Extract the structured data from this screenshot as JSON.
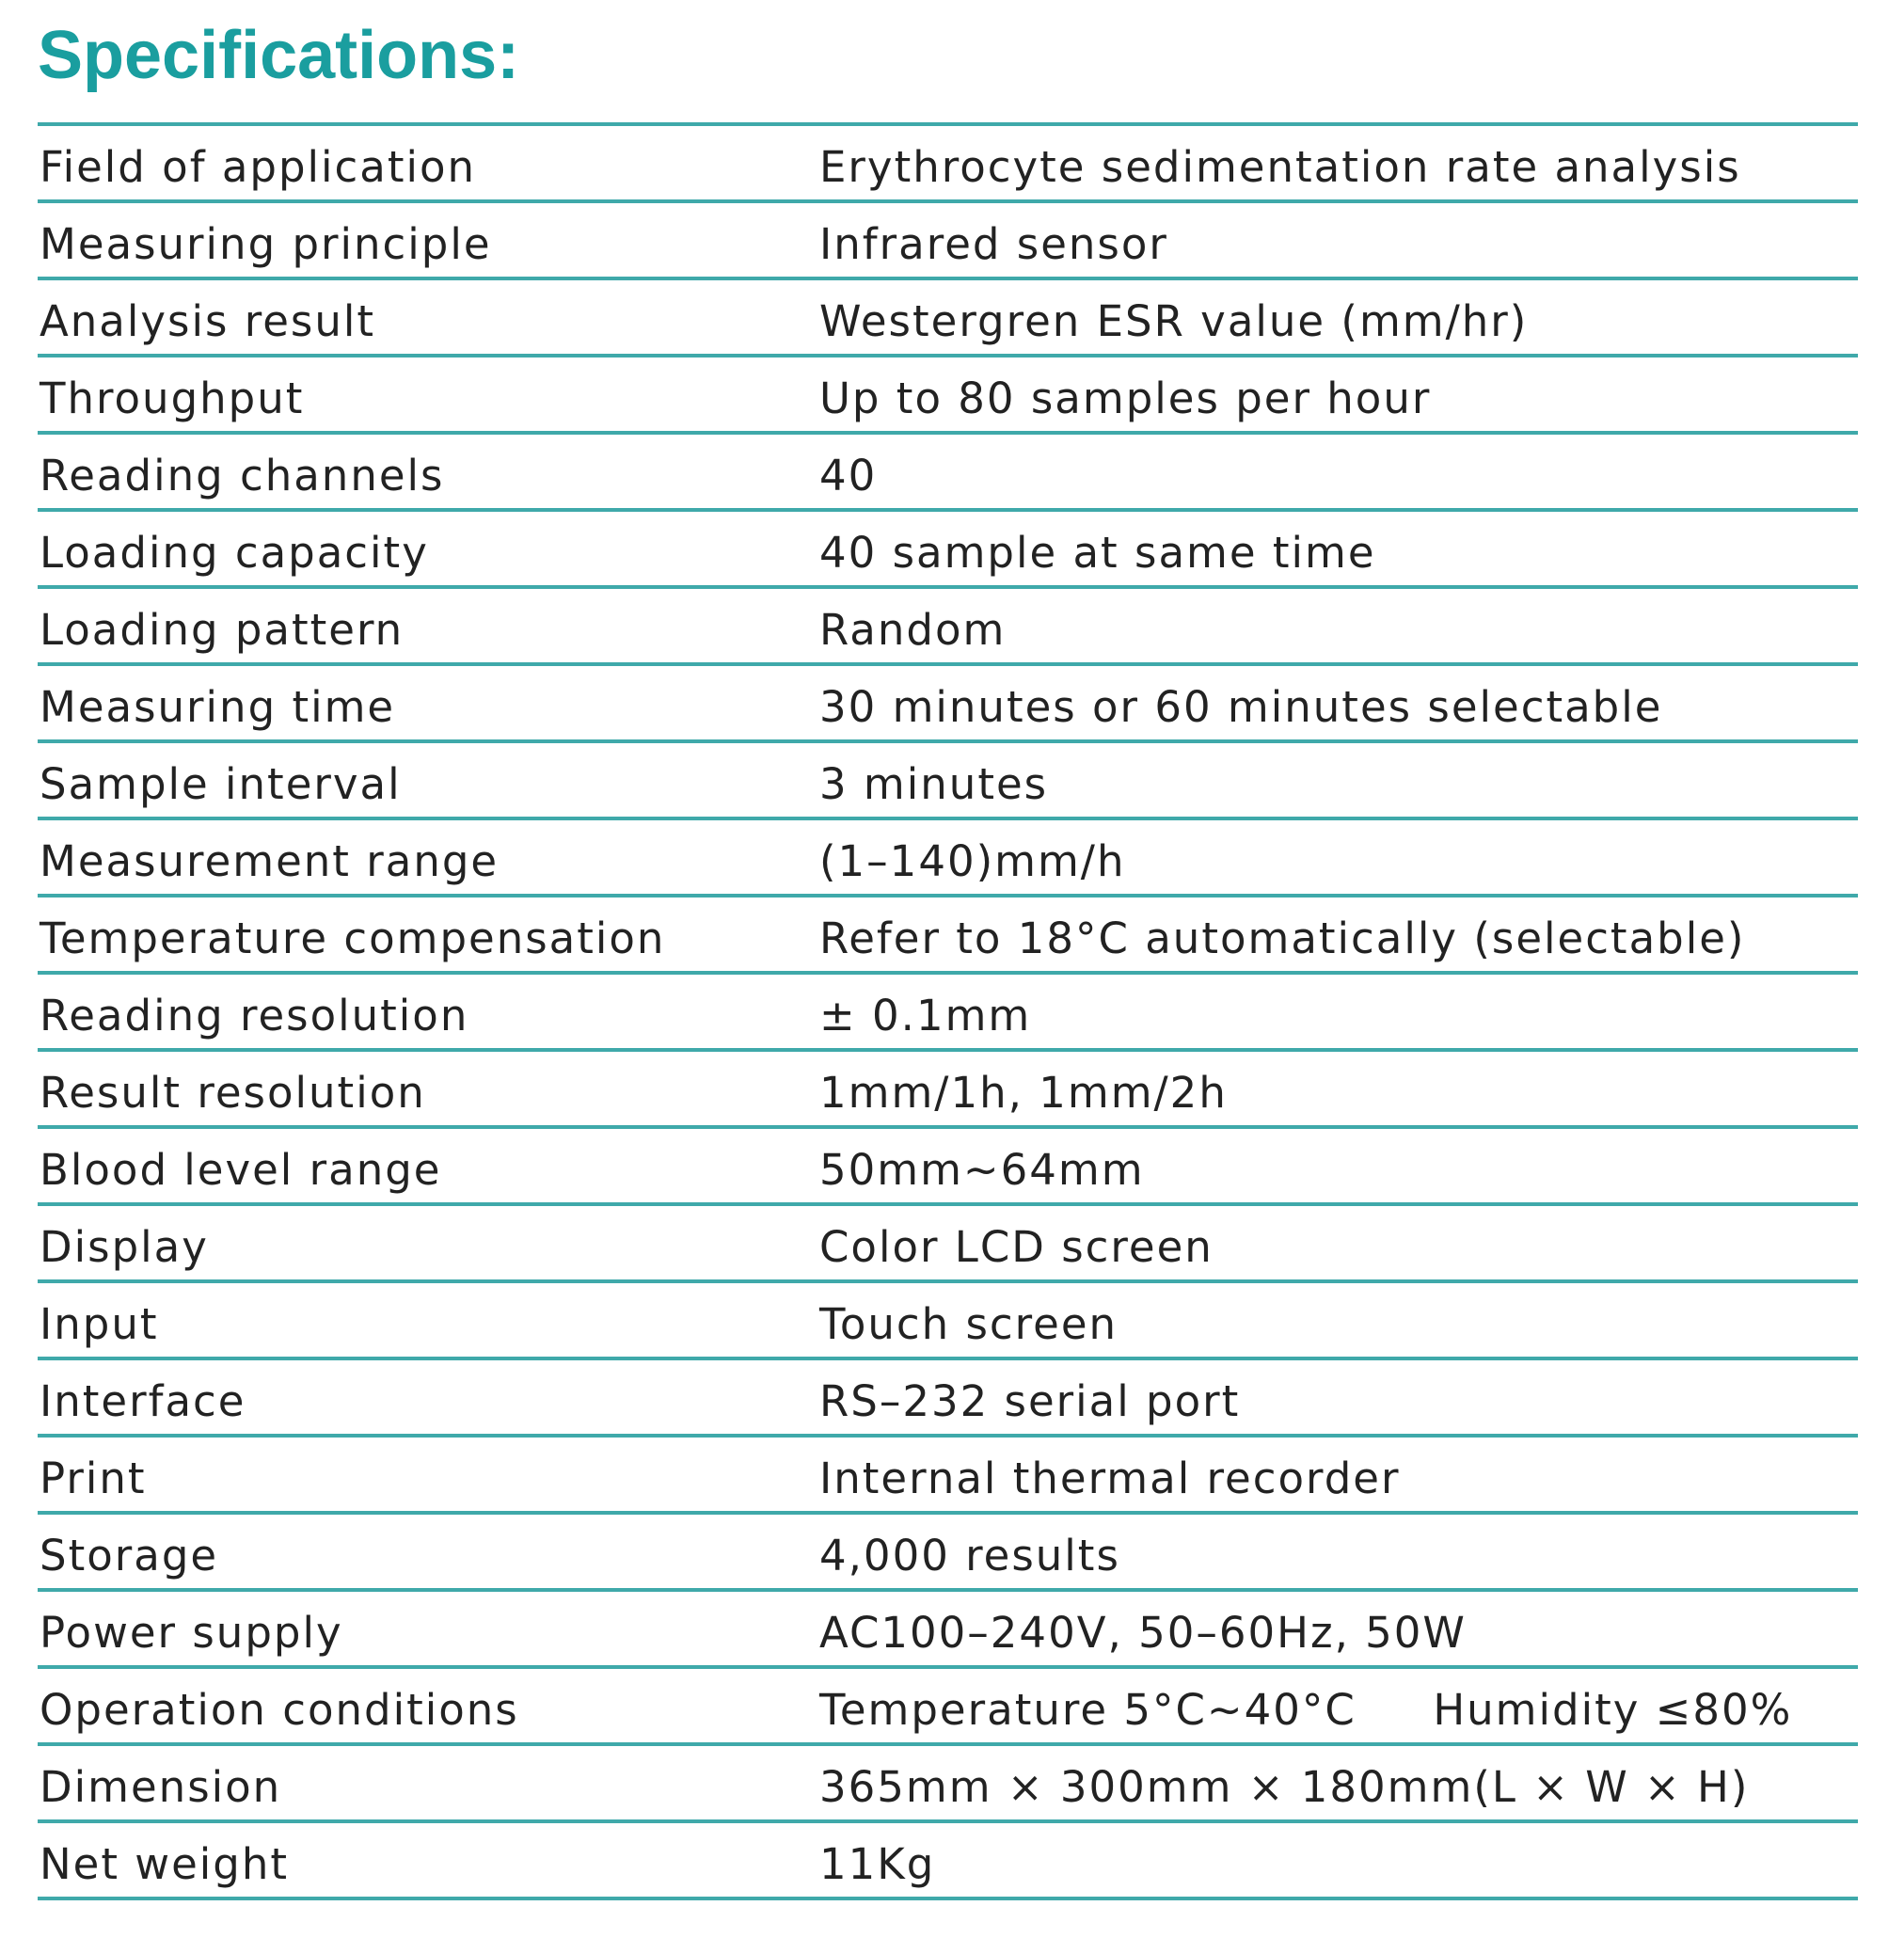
{
  "header": {
    "title": "Specifications:"
  },
  "table": {
    "rows": [
      [
        "Field of application",
        "Erythrocyte sedimentation rate analysis"
      ],
      [
        "Measuring principle",
        "Infrared sensor"
      ],
      [
        "Analysis result",
        "Westergren ESR value (mm/hr)"
      ],
      [
        "Throughput",
        "Up to 80 samples per hour"
      ],
      [
        "Reading channels",
        "40"
      ],
      [
        "Loading capacity",
        "40 sample at same time"
      ],
      [
        "Loading pattern",
        "Random"
      ],
      [
        "Measuring time",
        "30 minutes or 60 minutes selectable"
      ],
      [
        "Sample interval",
        "3 minutes"
      ],
      [
        "Measurement range",
        "(1–140)mm/h"
      ],
      [
        "Temperature compensation",
        "Refer to 18°C automatically (selectable)"
      ],
      [
        "Reading resolution",
        "± 0.1mm"
      ],
      [
        "Result resolution",
        "1mm/1h, 1mm/2h"
      ],
      [
        "Blood level range",
        "50mm~64mm"
      ],
      [
        "Display",
        "Color LCD screen"
      ],
      [
        "Input",
        "Touch screen"
      ],
      [
        "Interface",
        "RS–232 serial port"
      ],
      [
        "Print",
        "Internal thermal recorder"
      ],
      [
        "Storage",
        "4,000 results"
      ],
      [
        "Power supply",
        "AC100–240V, 50–60Hz, 50W"
      ],
      [
        "Operation conditions",
        "Temperature 5°C~40°C     Humidity ≤80%"
      ],
      [
        "Dimension",
        "365mm × 300mm × 180mm(L × W × H)"
      ],
      [
        "Net weight",
        "11Kg"
      ]
    ]
  }
}
